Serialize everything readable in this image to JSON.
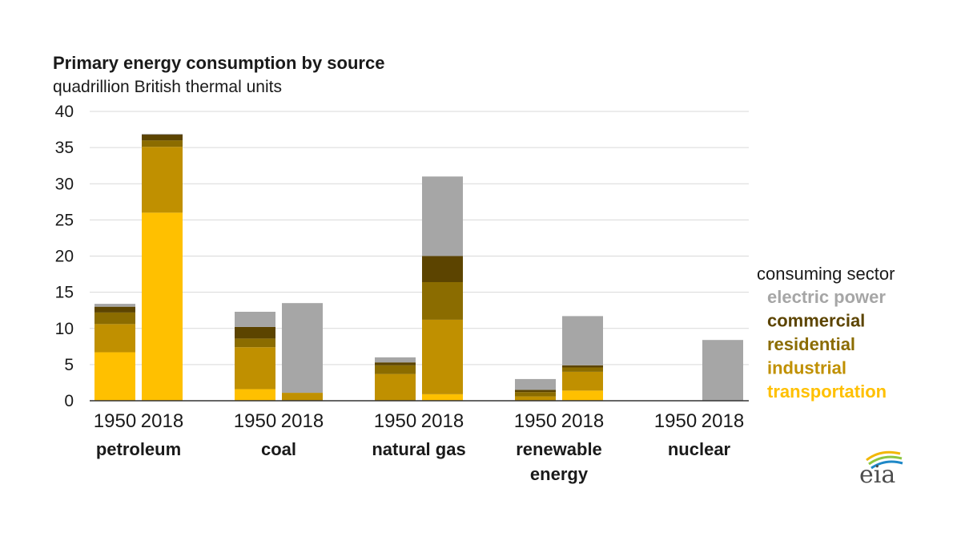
{
  "chart_data": {
    "type": "bar",
    "stacked": true,
    "title": "Primary energy consumption by source",
    "subtitle": "quadrillion British thermal units",
    "ylim": [
      0,
      40
    ],
    "yticks": [
      0,
      5,
      10,
      15,
      20,
      25,
      30,
      35,
      40
    ],
    "grid": true,
    "legend_title": "consuming sector",
    "legend_placement": "right",
    "groups": [
      {
        "name": "petroleum",
        "name_lines": [
          "petroleum"
        ]
      },
      {
        "name": "coal",
        "name_lines": [
          "coal"
        ]
      },
      {
        "name": "natural gas",
        "name_lines": [
          "natural gas"
        ]
      },
      {
        "name": "renewable energy",
        "name_lines": [
          "renewable",
          "energy"
        ]
      },
      {
        "name": "nuclear",
        "name_lines": [
          "nuclear"
        ]
      }
    ],
    "years": [
      "1950",
      "2018"
    ],
    "series": [
      {
        "name": "transportation",
        "color": "#FFC000",
        "values": [
          [
            6.7,
            26.0
          ],
          [
            1.6,
            0.0
          ],
          [
            0.0,
            0.9
          ],
          [
            0.0,
            1.4
          ],
          [
            0.0,
            0.0
          ]
        ]
      },
      {
        "name": "industrial",
        "color": "#C09000",
        "values": [
          [
            3.9,
            9.1
          ],
          [
            5.8,
            1.1
          ],
          [
            3.7,
            10.3
          ],
          [
            0.6,
            2.6
          ],
          [
            0.0,
            0.0
          ]
        ]
      },
      {
        "name": "residential",
        "color": "#8B6C00",
        "values": [
          [
            1.6,
            0.9
          ],
          [
            1.2,
            0.0
          ],
          [
            1.2,
            5.2
          ],
          [
            0.6,
            0.6
          ],
          [
            0.0,
            0.0
          ]
        ]
      },
      {
        "name": "commercial",
        "color": "#5C4400",
        "values": [
          [
            0.8,
            0.8
          ],
          [
            1.6,
            0.0
          ],
          [
            0.4,
            3.6
          ],
          [
            0.3,
            0.3
          ],
          [
            0.0,
            0.0
          ]
        ]
      },
      {
        "name": "electric power",
        "color": "#A6A6A6",
        "values": [
          [
            0.4,
            0.1
          ],
          [
            2.1,
            12.4
          ],
          [
            0.7,
            11.0
          ],
          [
            1.5,
            6.8
          ],
          [
            0.0,
            8.4
          ]
        ]
      }
    ],
    "legend_order": [
      "electric power",
      "commercial",
      "residential",
      "industrial",
      "transportation"
    ]
  },
  "logo": {
    "text": "eia"
  }
}
